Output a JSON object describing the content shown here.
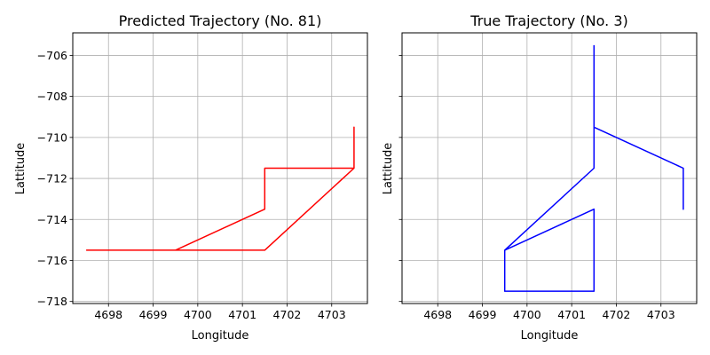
{
  "chart_data": [
    {
      "type": "line",
      "title": "Predicted Trajectory (No. 81)",
      "xlabel": "Longitude",
      "ylabel": "Lattitude",
      "xlim": [
        4697.2,
        4703.8
      ],
      "ylim": [
        -718.1,
        -704.9
      ],
      "xticks": [
        4698,
        4699,
        4700,
        4701,
        4702,
        4703
      ],
      "yticks": [
        -706,
        -708,
        -710,
        -712,
        -714,
        -716,
        -718
      ],
      "ytick_labels_visible": true,
      "grid": true,
      "series": [
        {
          "color": "#ff0000",
          "x": [
            4697.5,
            4699.5,
            4701.5,
            4701.5,
            4703.5,
            4703.5,
            4703.5,
            4701.5,
            4697.5
          ],
          "y": [
            -715.5,
            -715.5,
            -713.5,
            -711.5,
            -711.5,
            -709.5,
            -711.5,
            -715.5,
            -715.5
          ]
        }
      ]
    },
    {
      "type": "line",
      "title": "True Trajectory (No. 3)",
      "xlabel": "Longitude",
      "ylabel": "Lattitude",
      "xlim": [
        4697.2,
        4703.8
      ],
      "ylim": [
        -718.1,
        -704.9
      ],
      "xticks": [
        4698,
        4699,
        4700,
        4701,
        4702,
        4703
      ],
      "yticks": [
        -706,
        -708,
        -710,
        -712,
        -714,
        -716,
        -718
      ],
      "ytick_labels_visible": false,
      "grid": true,
      "series": [
        {
          "color": "#0000ff",
          "x": [
            4701.5,
            4701.5,
            4703.5,
            4703.5,
            4703.5,
            4701.5,
            4701.5,
            4699.5,
            4701.5,
            4701.5,
            4699.5,
            4699.5,
            4701.5
          ],
          "y": [
            -705.5,
            -709.5,
            -711.5,
            -713.5,
            -711.5,
            -709.5,
            -711.5,
            -715.5,
            -713.5,
            -717.5,
            -717.5,
            -715.5,
            -711.5
          ]
        }
      ]
    }
  ]
}
